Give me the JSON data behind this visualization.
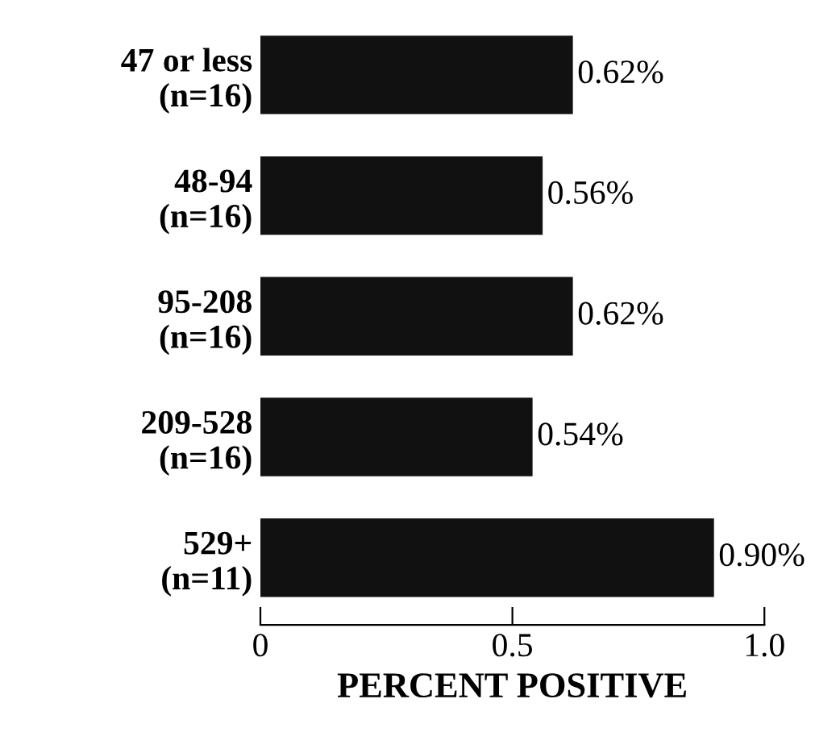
{
  "chart_data": {
    "type": "bar",
    "orientation": "horizontal",
    "categories": [
      "47 or less\n(n=16)",
      "48-94\n(n=16)",
      "95-208\n(n=16)",
      "209-528\n(n=16)",
      "529+\n(n=11)"
    ],
    "values": [
      0.62,
      0.56,
      0.62,
      0.54,
      0.9
    ],
    "value_labels": [
      "0.62%",
      "0.56%",
      "0.62%",
      "0.54%",
      "0.90%"
    ],
    "color": "#111111",
    "xlabel": "PERCENT POSITIVE",
    "xlim": [
      0,
      1.0
    ],
    "xticks": [
      0,
      0.5,
      {
        "value": 1.0,
        "label": "1.0"
      }
    ],
    "grid": false,
    "legend": false
  }
}
